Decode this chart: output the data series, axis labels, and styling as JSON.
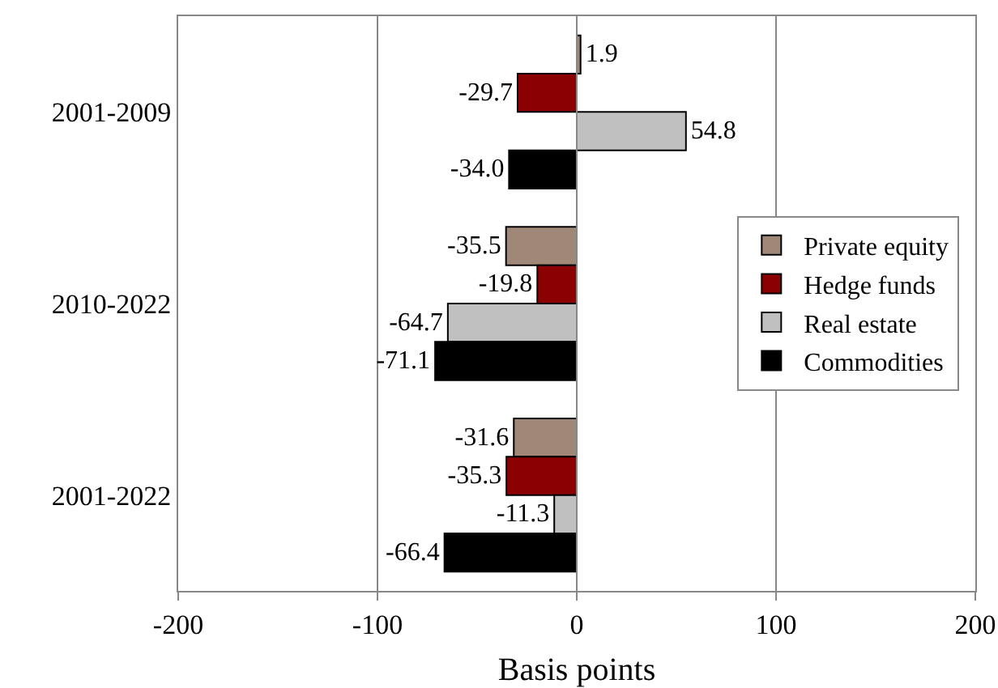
{
  "chart_data": {
    "type": "bar",
    "orientation": "horizontal",
    "xlabel": "Basis points",
    "categories": [
      "2001-2009",
      "2010-2022",
      "2001-2022"
    ],
    "series": [
      {
        "name": "Private equity",
        "color": "#a08878",
        "values": [
          1.9,
          -35.5,
          -31.6
        ],
        "value_labels": [
          "1.9",
          "-35.5",
          "-31.6"
        ]
      },
      {
        "name": "Hedge funds",
        "color": "#8b0000",
        "values": [
          -29.7,
          -19.8,
          -35.3
        ],
        "value_labels": [
          "-29.7",
          "-19.8",
          "-35.3"
        ]
      },
      {
        "name": "Real estate",
        "color": "#c0c0c0",
        "values": [
          54.8,
          -64.7,
          -11.3
        ],
        "value_labels": [
          "54.8",
          "-64.7",
          "-11.3"
        ]
      },
      {
        "name": "Commodities",
        "color": "#000000",
        "values": [
          -34.0,
          -71.1,
          -66.4
        ],
        "value_labels": [
          "-34.0",
          "-71.1",
          "-66.4"
        ]
      }
    ],
    "xlim": [
      -200,
      200
    ],
    "xticks": [
      -200,
      -100,
      0,
      100,
      200
    ],
    "grid": "x",
    "legend": "right"
  }
}
